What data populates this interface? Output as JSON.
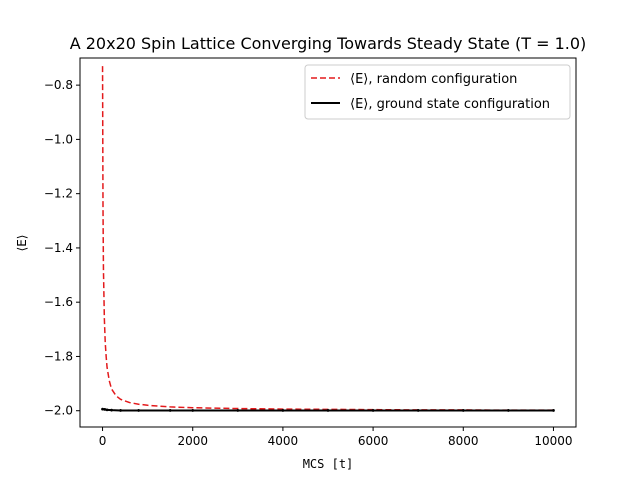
{
  "chart_data": {
    "type": "line",
    "title": "A 20x20 Spin Lattice Converging Towards Steady State (T = 1.0)",
    "xlabel": "MCS [t]",
    "ylabel": "⟨E⟩",
    "xlim": [
      -500,
      10500
    ],
    "ylim": [
      -2.06,
      -0.7
    ],
    "xticks": [
      0,
      2000,
      4000,
      6000,
      8000,
      10000
    ],
    "yticks": [
      -2.0,
      -1.8,
      -1.6,
      -1.4,
      -1.2,
      -1.0,
      -0.8
    ],
    "xtick_labels": [
      "0",
      "2000",
      "4000",
      "6000",
      "8000",
      "10000"
    ],
    "ytick_labels": [
      "−2.0",
      "−1.8",
      "−1.6",
      "−1.4",
      "−1.2",
      "−1.0",
      "−0.8"
    ],
    "grid": false,
    "legend_position": "top-right",
    "series": [
      {
        "name": "⟨E⟩, random configuration",
        "color": "#e31a1c",
        "style": "dashed",
        "x": [
          0,
          10,
          20,
          40,
          60,
          80,
          100,
          150,
          200,
          300,
          400,
          600,
          800,
          1000,
          1500,
          2000,
          3000,
          4000,
          5000,
          6000,
          7000,
          8000,
          9000,
          10000
        ],
        "y": [
          -0.73,
          -1.25,
          -1.48,
          -1.66,
          -1.75,
          -1.8,
          -1.84,
          -1.89,
          -1.92,
          -1.945,
          -1.958,
          -1.97,
          -1.976,
          -1.98,
          -1.986,
          -1.989,
          -1.992,
          -1.994,
          -1.995,
          -1.996,
          -1.997,
          -1.997,
          -1.998,
          -1.998
        ]
      },
      {
        "name": "⟨E⟩, ground state configuration",
        "color": "#000000",
        "style": "solid",
        "x": [
          0,
          50,
          100,
          200,
          400,
          800,
          1500,
          2000,
          3000,
          4000,
          5000,
          6000,
          7000,
          8000,
          9000,
          10000
        ],
        "y": [
          -1.994,
          -1.995,
          -1.997,
          -1.998,
          -1.999,
          -1.999,
          -1.999,
          -1.999,
          -1.999,
          -1.999,
          -1.999,
          -1.999,
          -1.999,
          -1.999,
          -1.999,
          -1.999
        ]
      }
    ]
  }
}
